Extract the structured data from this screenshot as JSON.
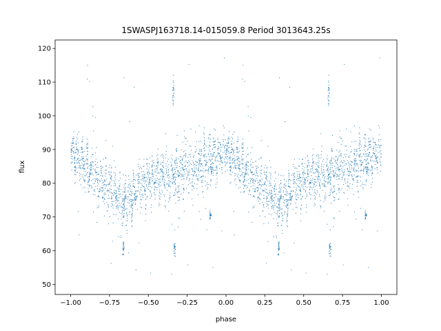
{
  "chart_data": {
    "type": "scatter",
    "title": "1SWASPJ163718.14-015059.8 Period 3013643.25s",
    "xlabel": "phase",
    "ylabel": "flux",
    "xlim": [
      -1.1,
      1.1
    ],
    "ylim": [
      47,
      122.5
    ],
    "grid": false,
    "marker_color": "#1f77b4",
    "xticks": [
      -1.0,
      -0.75,
      -0.5,
      -0.25,
      0.0,
      0.25,
      0.5,
      0.75,
      1.0
    ],
    "xtick_labels": [
      "−1.00",
      "−0.75",
      "−0.50",
      "−0.25",
      "0.00",
      "0.25",
      "0.50",
      "0.75",
      "1.00"
    ],
    "yticks": [
      50,
      60,
      70,
      80,
      90,
      100,
      110,
      120
    ],
    "ytick_labels": [
      "50",
      "60",
      "70",
      "80",
      "90",
      "100",
      "110",
      "120"
    ],
    "series": [
      {
        "profile_phase": [
          0.0,
          0.05,
          0.1,
          0.15,
          0.2,
          0.25,
          0.3,
          0.35,
          0.4,
          0.45,
          0.5,
          0.55,
          0.6,
          0.65,
          0.7,
          0.75,
          0.8,
          0.85,
          0.9,
          0.95,
          1.0
        ],
        "profile_flux_mean": [
          90,
          87,
          84,
          82,
          80,
          78,
          75,
          73,
          76,
          79,
          81,
          82,
          82,
          82,
          83,
          85,
          84,
          85,
          87,
          88,
          90
        ],
        "profile_flux_spread": [
          4,
          4,
          5,
          6,
          6,
          6,
          6,
          5,
          5,
          5,
          5,
          5,
          5,
          6,
          7,
          7,
          6,
          6,
          5,
          4,
          4
        ],
        "clumps": [
          {
            "phase": 0.34,
            "flux": 61,
            "spread": 1.2
          },
          {
            "phase": 0.66,
            "flux": 107,
            "spread": 2.0
          },
          {
            "phase": 0.67,
            "flux": 61,
            "spread": 1.0
          },
          {
            "phase": 0.9,
            "flux": 70.5,
            "spread": 0.6
          }
        ]
      }
    ]
  }
}
